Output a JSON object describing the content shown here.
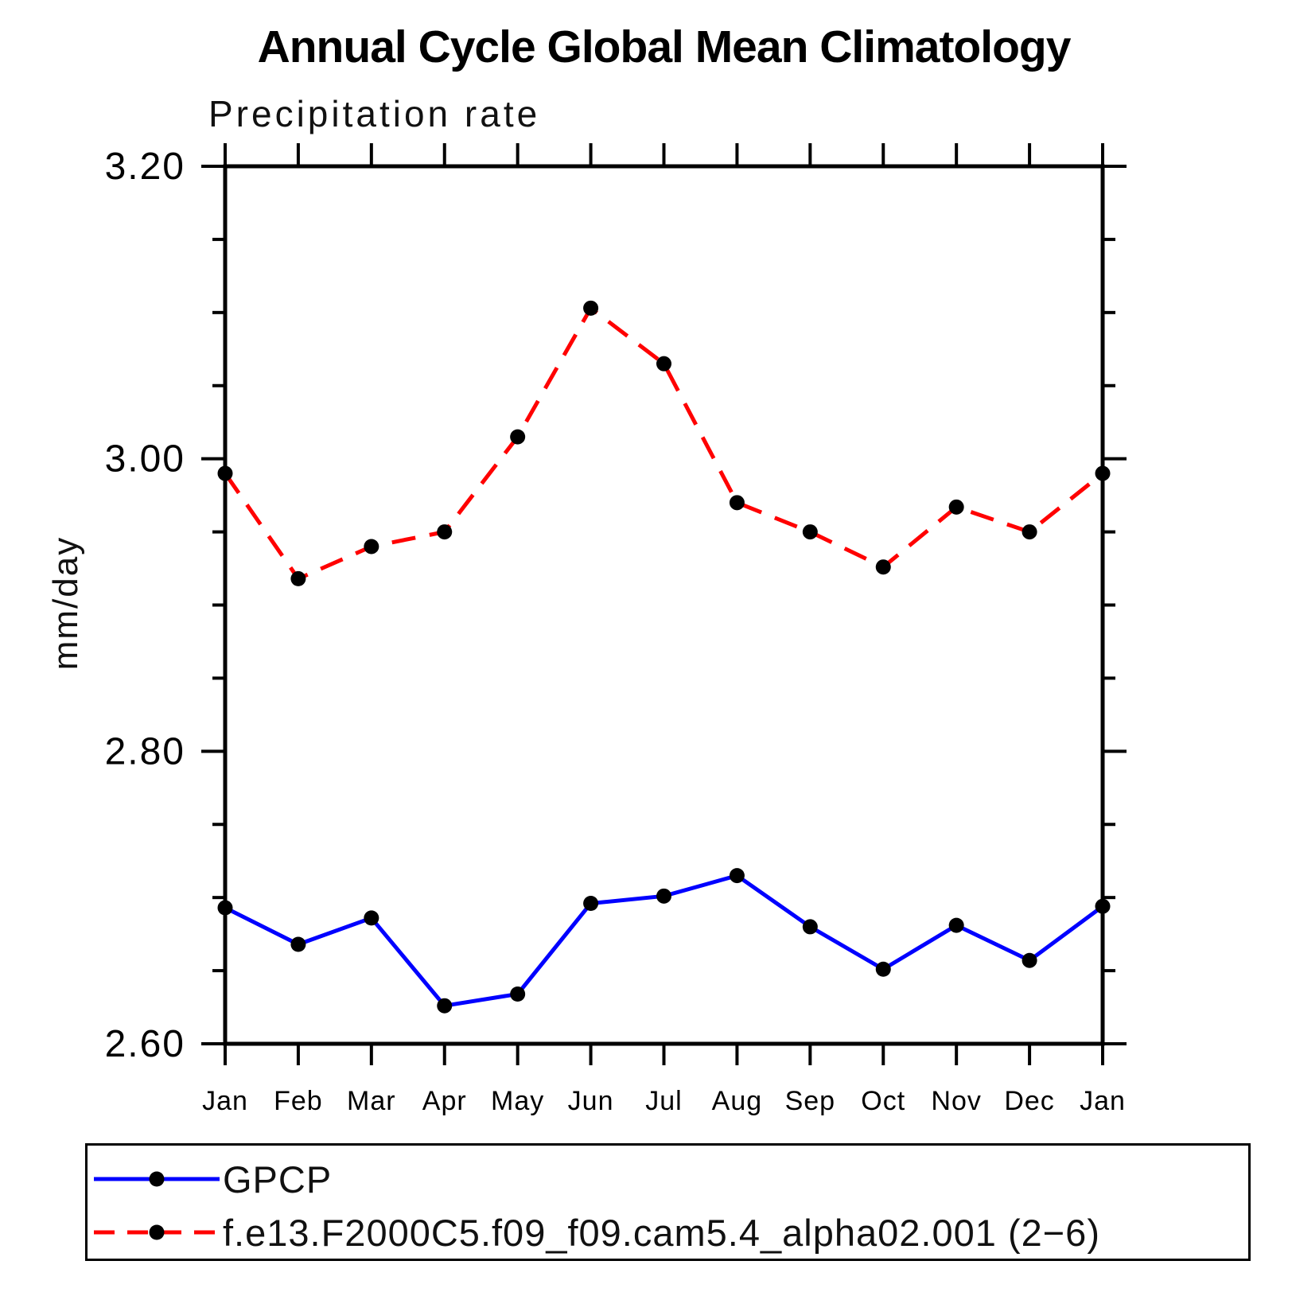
{
  "title": "Annual Cycle Global Mean Climatology",
  "subtitle": "Precipitation rate",
  "ylabel": "mm/day",
  "chart_data": {
    "type": "line",
    "x_categories": [
      "Jan",
      "Feb",
      "Mar",
      "Apr",
      "May",
      "Jun",
      "Jul",
      "Aug",
      "Sep",
      "Oct",
      "Nov",
      "Dec",
      "Jan"
    ],
    "ylim": [
      2.6,
      3.2
    ],
    "ytick_major": [
      2.6,
      2.8,
      3.0,
      3.2
    ],
    "ytick_minor_step": 0.05,
    "grid": false,
    "axis_color": "#000000",
    "legend_position": "bottom-left-box",
    "series": [
      {
        "name": "GPCP",
        "color": "#0000ff",
        "line_style": "solid",
        "marker": "circle",
        "marker_color": "#000000",
        "values": [
          2.693,
          2.668,
          2.686,
          2.626,
          2.634,
          2.696,
          2.701,
          2.715,
          2.68,
          2.651,
          2.681,
          2.657,
          2.694
        ]
      },
      {
        "name": "f.e13.F2000C5.f09_f09.cam5.4_alpha02.001 (2−6)",
        "color": "#ff0000",
        "line_style": "dashed",
        "marker": "circle",
        "marker_color": "#000000",
        "values": [
          2.99,
          2.918,
          2.94,
          2.95,
          3.015,
          3.103,
          3.065,
          2.97,
          2.95,
          2.926,
          2.967,
          2.95,
          2.99
        ]
      }
    ]
  }
}
